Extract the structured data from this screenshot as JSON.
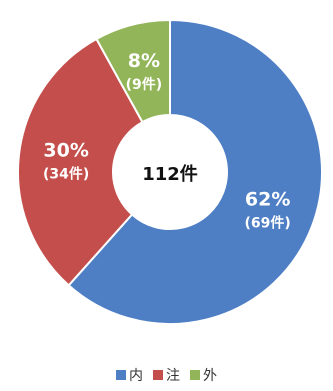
{
  "chart_data": {
    "type": "pie",
    "variant": "donut",
    "center_label": "112件",
    "categories": [
      "内",
      "注",
      "外"
    ],
    "values": [
      69,
      34,
      9
    ],
    "percent_labels": [
      "62%",
      "30%",
      "8%"
    ],
    "count_labels": [
      "(69件)",
      "(34件)",
      "(9件)"
    ],
    "colors": [
      "#4E7EC4",
      "#C44E4B",
      "#93B55A"
    ],
    "legend_position": "bottom-center"
  }
}
